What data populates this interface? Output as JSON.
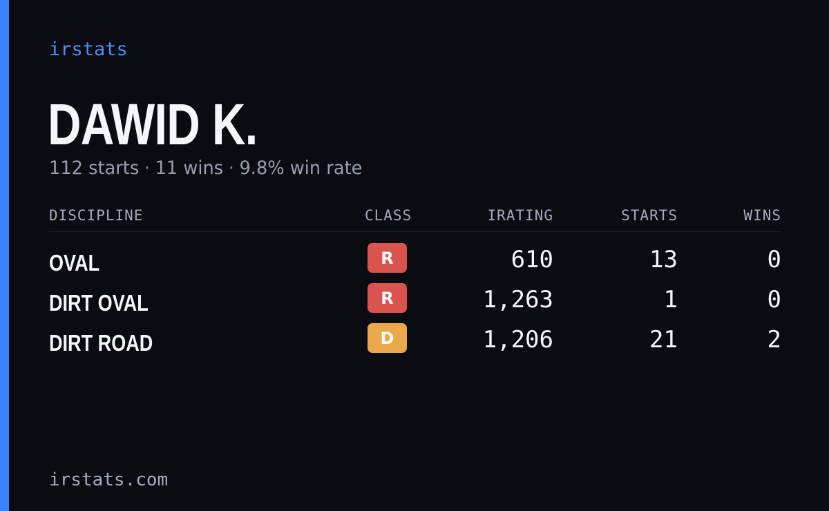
{
  "brand": "irstats",
  "driver": {
    "name": "DAWID K.",
    "summary": {
      "starts": "112 starts",
      "wins": "11 wins",
      "win_rate": "9.8% win rate",
      "separator": "·"
    }
  },
  "table": {
    "headers": {
      "discipline": "DISCIPLINE",
      "class": "CLASS",
      "irating": "IRATING",
      "starts": "STARTS",
      "wins": "WINS"
    },
    "rows": [
      {
        "discipline": "OVAL",
        "class": "R",
        "class_color": "#d9534f",
        "irating": "610",
        "starts": "13",
        "wins": "0"
      },
      {
        "discipline": "DIRT OVAL",
        "class": "R",
        "class_color": "#d9534f",
        "irating": "1,263",
        "starts": "1",
        "wins": "0"
      },
      {
        "discipline": "DIRT ROAD",
        "class": "D",
        "class_color": "#eaa84a",
        "irating": "1,206",
        "starts": "21",
        "wins": "2"
      }
    ]
  },
  "footer": "irstats.com",
  "colors": {
    "accent": "#3b82f6",
    "background": "#0a0c12",
    "class_r": "#d9534f",
    "class_d": "#eaa84a"
  }
}
